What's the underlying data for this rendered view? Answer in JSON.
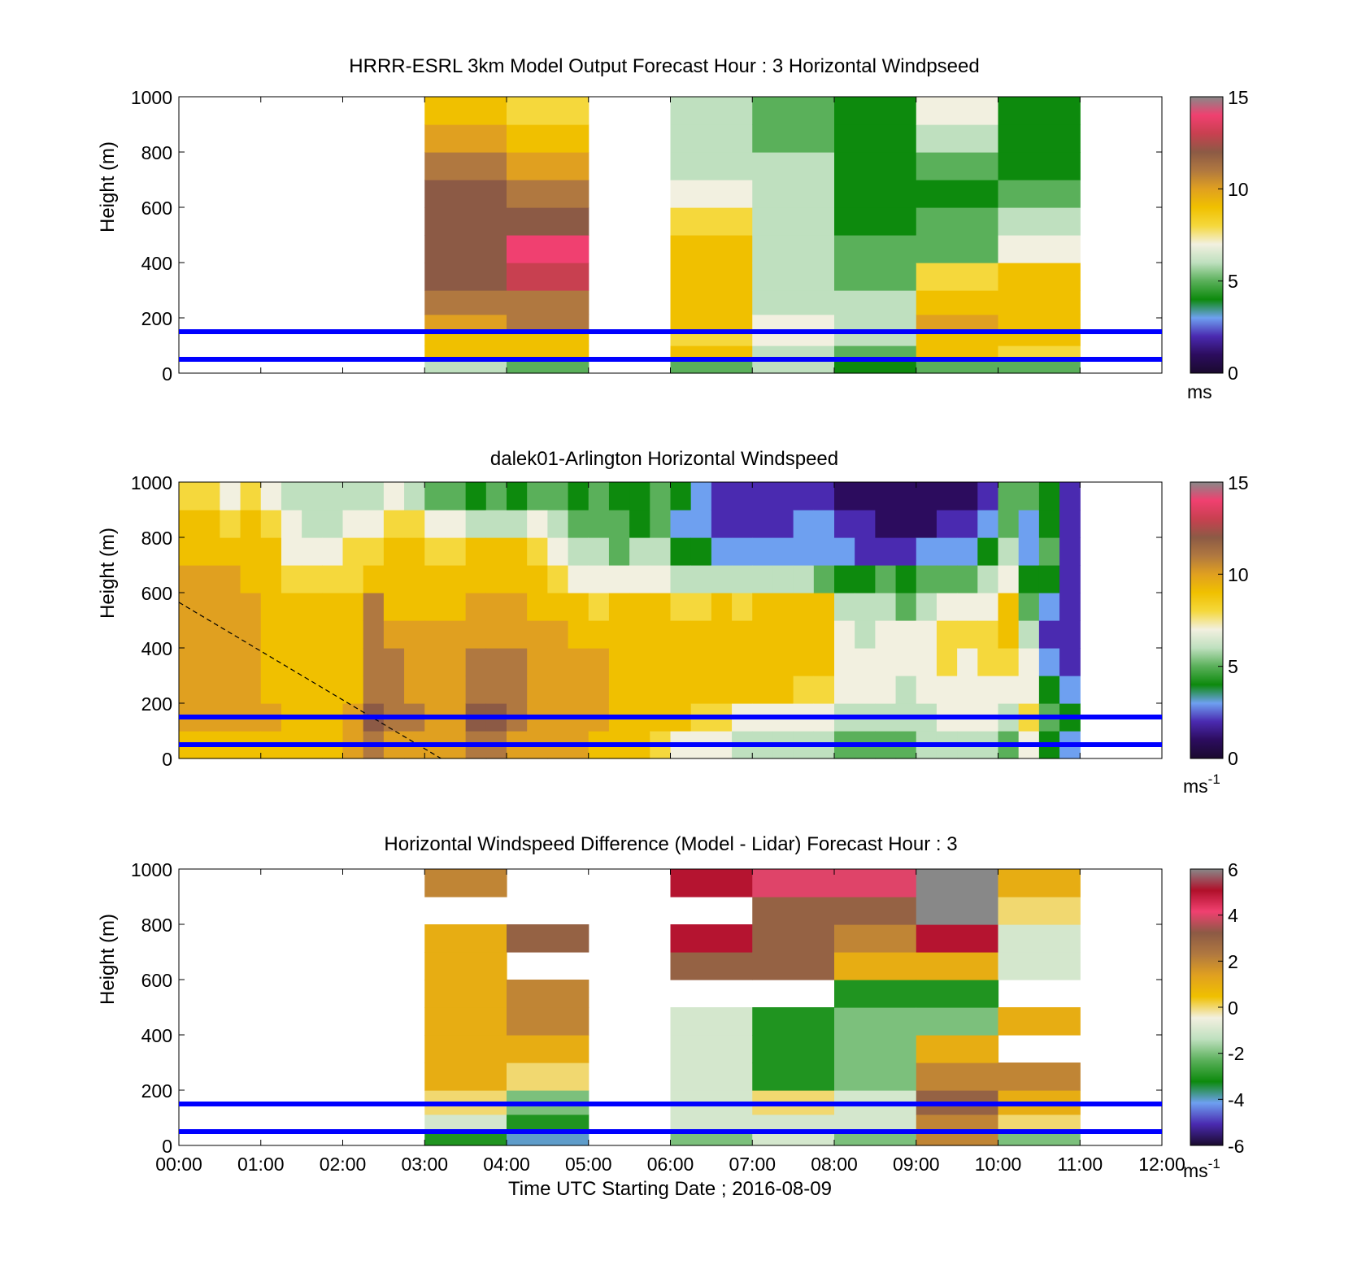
{
  "figure": {
    "xlabel": "Time UTC  Starting Date ; 2016-08-09"
  },
  "colors": {
    "lidar_band_lines": "#0000ff",
    "windspeed_scale": [
      "#1a0a2e",
      "#2c0c5e",
      "#4a2ab0",
      "#6ea0f0",
      "#0d8a0d",
      "#5ab05a",
      "#bfe0bf",
      "#f2f0e0",
      "#f5d83c",
      "#f0c000",
      "#e0a020",
      "#b07840",
      "#8c5a45",
      "#c84050",
      "#f04070",
      "#888888"
    ],
    "difference_scale": [
      "#1a0a2e",
      "#4a2ab0",
      "#6ea0f0",
      "#0d8a0d",
      "#5ab05a",
      "#bfe0bf",
      "#f2f0e0",
      "#f0c000",
      "#e0a020",
      "#b07840",
      "#8c5a45",
      "#f04070",
      "#b0102a",
      "#888888"
    ]
  },
  "chart_data": [
    {
      "type": "heatmap",
      "title": "HRRR-ESRL 3km Model Output   Forecast Hour : 3 Horizontal Windpseed",
      "xlabel": "",
      "ylabel": "Height (m)",
      "xlim": [
        0,
        12
      ],
      "ylim": [
        0,
        1000
      ],
      "x_ticks": [
        "00:00",
        "01:00",
        "02:00",
        "03:00",
        "04:00",
        "05:00",
        "06:00",
        "07:00",
        "08:00",
        "09:00",
        "10:00",
        "11:00",
        "12:00"
      ],
      "x_tick_labels_shown": false,
      "y_ticks": [
        "0",
        "200",
        "400",
        "600",
        "800",
        "1000"
      ],
      "grid": false,
      "colorbar": {
        "min": 0,
        "max": 15,
        "ticks": [
          "0",
          "5",
          "10",
          "15"
        ],
        "unit": "ms",
        "unit_sup": "",
        "scale": "windspeed"
      },
      "reference_lines_m": [
        50,
        150
      ],
      "heights_m": [
        25,
        75,
        125,
        175,
        250,
        350,
        450,
        550,
        650,
        750,
        850,
        950
      ],
      "columns": [
        {
          "x": 3.5,
          "values": [
            6,
            9,
            9,
            10,
            11,
            12,
            12,
            12,
            12,
            11,
            10,
            9
          ]
        },
        {
          "x": 4.5,
          "values": [
            5,
            9,
            9,
            11,
            11,
            13,
            14,
            12,
            11,
            10,
            9,
            8
          ]
        },
        {
          "x": 6.5,
          "values": [
            5,
            9,
            8,
            9,
            9,
            9,
            9,
            8,
            7,
            6,
            6,
            6
          ]
        },
        {
          "x": 7.5,
          "values": [
            6,
            6,
            7,
            7,
            6,
            6,
            6,
            6,
            6,
            6,
            5,
            5
          ]
        },
        {
          "x": 8.5,
          "values": [
            4,
            5,
            6,
            6,
            6,
            5,
            5,
            4,
            4,
            4,
            4,
            4
          ]
        },
        {
          "x": 9.5,
          "values": [
            5,
            9,
            9,
            10,
            9,
            8,
            5,
            5,
            4,
            5,
            6,
            7
          ]
        },
        {
          "x": 10.5,
          "values": [
            5,
            8,
            9,
            9,
            9,
            9,
            7,
            6,
            5,
            4,
            4,
            4
          ]
        }
      ]
    },
    {
      "type": "heatmap",
      "title": "dalek01-Arlington  Horizontal Windspeed",
      "xlabel": "",
      "ylabel": "Height (m)",
      "xlim": [
        0,
        12
      ],
      "ylim": [
        0,
        1000
      ],
      "x_ticks": [
        "00:00",
        "01:00",
        "02:00",
        "03:00",
        "04:00",
        "05:00",
        "06:00",
        "07:00",
        "08:00",
        "09:00",
        "10:00",
        "11:00",
        "12:00"
      ],
      "x_tick_labels_shown": false,
      "y_ticks": [
        "0",
        "200",
        "400",
        "600",
        "800",
        "1000"
      ],
      "grid": false,
      "colorbar": {
        "min": 0,
        "max": 15,
        "ticks": [
          "0",
          "5",
          "10",
          "15"
        ],
        "unit": "ms",
        "unit_sup": "-1",
        "scale": "windspeed"
      },
      "reference_lines_m": [
        50,
        150
      ],
      "dashed_line": {
        "x": [
          0,
          3.2
        ],
        "y": [
          565,
          0
        ]
      },
      "heights_m": [
        50,
        150,
        250,
        350,
        450,
        550,
        650,
        750,
        850,
        950
      ],
      "columns": [
        {
          "x": 0.125,
          "values": [
            9,
            10,
            10,
            10,
            10,
            10,
            10,
            9,
            9,
            8
          ]
        },
        {
          "x": 0.375,
          "values": [
            9,
            10,
            10,
            10,
            10,
            10,
            10,
            9,
            9,
            8
          ]
        },
        {
          "x": 0.625,
          "values": [
            9,
            10,
            10,
            10,
            10,
            10,
            10,
            9,
            8,
            7
          ]
        },
        {
          "x": 0.875,
          "values": [
            9,
            10,
            10,
            10,
            10,
            10,
            9,
            9,
            9,
            8
          ]
        },
        {
          "x": 1.125,
          "values": [
            9,
            10,
            9,
            9,
            9,
            9,
            9,
            9,
            8,
            7
          ]
        },
        {
          "x": 1.375,
          "values": [
            9,
            9,
            9,
            9,
            9,
            9,
            8,
            7,
            7,
            6
          ]
        },
        {
          "x": 1.625,
          "values": [
            9,
            9,
            9,
            9,
            9,
            9,
            8,
            7,
            6,
            6
          ]
        },
        {
          "x": 1.875,
          "values": [
            9,
            9,
            9,
            9,
            9,
            9,
            8,
            7,
            6,
            6
          ]
        },
        {
          "x": 2.125,
          "values": [
            10,
            10,
            9,
            9,
            9,
            9,
            8,
            8,
            7,
            6
          ]
        },
        {
          "x": 2.375,
          "values": [
            11,
            12,
            11,
            11,
            11,
            11,
            9,
            8,
            7,
            6
          ]
        },
        {
          "x": 2.625,
          "values": [
            10,
            11,
            11,
            11,
            10,
            9,
            9,
            9,
            8,
            7
          ]
        },
        {
          "x": 2.875,
          "values": [
            10,
            11,
            10,
            10,
            10,
            9,
            9,
            9,
            8,
            6
          ]
        },
        {
          "x": 3.125,
          "values": [
            10,
            10,
            10,
            10,
            10,
            9,
            9,
            8,
            7,
            5
          ]
        },
        {
          "x": 3.375,
          "values": [
            10,
            10,
            10,
            10,
            10,
            9,
            9,
            8,
            7,
            5
          ]
        },
        {
          "x": 3.625,
          "values": [
            11,
            12,
            11,
            11,
            10,
            10,
            9,
            9,
            6,
            4
          ]
        },
        {
          "x": 3.875,
          "values": [
            11,
            12,
            11,
            11,
            10,
            10,
            9,
            9,
            6,
            5
          ]
        },
        {
          "x": 4.125,
          "values": [
            10,
            11,
            11,
            11,
            10,
            10,
            9,
            9,
            6,
            4
          ]
        },
        {
          "x": 4.375,
          "values": [
            10,
            10,
            10,
            10,
            10,
            9,
            9,
            8,
            7,
            5
          ]
        },
        {
          "x": 4.625,
          "values": [
            10,
            10,
            10,
            10,
            10,
            9,
            8,
            7,
            6,
            5
          ]
        },
        {
          "x": 4.875,
          "values": [
            10,
            10,
            10,
            10,
            9,
            9,
            7,
            6,
            5,
            4
          ]
        },
        {
          "x": 5.125,
          "values": [
            9,
            10,
            10,
            10,
            9,
            8,
            7,
            6,
            5,
            5
          ]
        },
        {
          "x": 5.375,
          "values": [
            9,
            9,
            9,
            9,
            9,
            9,
            7,
            5,
            5,
            4
          ]
        },
        {
          "x": 5.625,
          "values": [
            9,
            9,
            9,
            9,
            9,
            9,
            7,
            6,
            4,
            4
          ]
        },
        {
          "x": 5.875,
          "values": [
            8,
            9,
            9,
            9,
            9,
            9,
            7,
            6,
            5,
            5
          ]
        },
        {
          "x": 6.125,
          "values": [
            7,
            9,
            9,
            9,
            9,
            8,
            6,
            4,
            3,
            4
          ]
        },
        {
          "x": 6.375,
          "values": [
            7,
            8,
            9,
            9,
            9,
            8,
            6,
            4,
            3,
            3
          ]
        },
        {
          "x": 6.625,
          "values": [
            7,
            8,
            9,
            9,
            9,
            9,
            6,
            3,
            2,
            2
          ]
        },
        {
          "x": 6.875,
          "values": [
            6,
            7,
            9,
            9,
            9,
            8,
            6,
            3,
            2,
            2
          ]
        },
        {
          "x": 7.125,
          "values": [
            6,
            7,
            9,
            9,
            9,
            9,
            6,
            3,
            2,
            2
          ]
        },
        {
          "x": 7.375,
          "values": [
            6,
            7,
            9,
            9,
            9,
            9,
            6,
            3,
            2,
            2
          ]
        },
        {
          "x": 7.625,
          "values": [
            6,
            7,
            8,
            9,
            9,
            9,
            6,
            3,
            3,
            2
          ]
        },
        {
          "x": 7.875,
          "values": [
            6,
            7,
            8,
            9,
            9,
            9,
            5,
            3,
            3,
            2
          ]
        },
        {
          "x": 8.125,
          "values": [
            5,
            6,
            7,
            7,
            7,
            6,
            4,
            3,
            2,
            1
          ]
        },
        {
          "x": 8.375,
          "values": [
            5,
            6,
            7,
            7,
            6,
            6,
            4,
            2,
            2,
            1
          ]
        },
        {
          "x": 8.625,
          "values": [
            5,
            6,
            7,
            7,
            7,
            6,
            5,
            2,
            1,
            1
          ]
        },
        {
          "x": 8.875,
          "values": [
            5,
            6,
            6,
            7,
            7,
            5,
            4,
            2,
            1,
            1
          ]
        },
        {
          "x": 9.125,
          "values": [
            6,
            6,
            7,
            7,
            7,
            6,
            5,
            3,
            1,
            1
          ]
        },
        {
          "x": 9.375,
          "values": [
            6,
            7,
            7,
            8,
            8,
            7,
            5,
            3,
            2,
            1
          ]
        },
        {
          "x": 9.625,
          "values": [
            6,
            7,
            7,
            7,
            8,
            7,
            5,
            3,
            2,
            1
          ]
        },
        {
          "x": 9.875,
          "values": [
            6,
            7,
            7,
            8,
            8,
            7,
            6,
            4,
            3,
            2
          ]
        },
        {
          "x": 10.125,
          "values": [
            5,
            6,
            7,
            8,
            9,
            9,
            7,
            6,
            5,
            5
          ]
        },
        {
          "x": 10.375,
          "values": [
            7,
            8,
            7,
            7,
            6,
            5,
            4,
            3,
            3,
            5
          ]
        },
        {
          "x": 10.625,
          "values": [
            4,
            5,
            4,
            3,
            2,
            3,
            4,
            5,
            4,
            4
          ]
        },
        {
          "x": 10.875,
          "values": [
            3,
            4,
            3,
            2,
            2,
            2,
            2,
            2,
            2,
            2
          ]
        }
      ]
    },
    {
      "type": "heatmap",
      "title": "Horizontal Windspeed Difference (Model - Lidar) Forecast Hour : 3",
      "xlabel": "Time UTC  Starting Date ; 2016-08-09",
      "ylabel": "Height (m)",
      "xlim": [
        0,
        12
      ],
      "ylim": [
        0,
        1000
      ],
      "x_ticks": [
        "00:00",
        "01:00",
        "02:00",
        "03:00",
        "04:00",
        "05:00",
        "06:00",
        "07:00",
        "08:00",
        "09:00",
        "10:00",
        "11:00",
        "12:00"
      ],
      "x_tick_labels_shown": true,
      "y_ticks": [
        "0",
        "200",
        "400",
        "600",
        "800",
        "1000"
      ],
      "grid": false,
      "colorbar": {
        "min": -6,
        "max": 6,
        "ticks": [
          "-6",
          "-4",
          "-2",
          "0",
          "2",
          "4",
          "6"
        ],
        "unit": "ms",
        "unit_sup": "-1",
        "scale": "difference"
      },
      "reference_lines_m": [
        50,
        150
      ],
      "heights_m": [
        25,
        75,
        150,
        250,
        350,
        450,
        550,
        650,
        750,
        850,
        950
      ],
      "columns": [
        {
          "x": 3.5,
          "values": [
            -3,
            -1,
            0,
            1,
            1,
            1,
            1,
            1,
            1,
            null,
            2
          ]
        },
        {
          "x": 4.5,
          "values": [
            -4,
            -3,
            -2,
            0,
            1,
            2,
            2,
            null,
            3,
            null,
            null
          ]
        },
        {
          "x": 6.5,
          "values": [
            -2,
            -1,
            -1,
            -1,
            -1,
            -1,
            null,
            3,
            5,
            null,
            5
          ]
        },
        {
          "x": 7.5,
          "values": [
            -1,
            -1,
            0,
            -3,
            -3,
            -3,
            null,
            3,
            3,
            3,
            4
          ]
        },
        {
          "x": 8.5,
          "values": [
            -2,
            -1,
            -1,
            -2,
            -2,
            -2,
            -3,
            1,
            2,
            3,
            4
          ]
        },
        {
          "x": 9.5,
          "values": [
            2,
            2,
            3,
            2,
            1,
            -2,
            -3,
            1,
            5,
            6,
            6
          ]
        },
        {
          "x": 10.5,
          "values": [
            -2,
            0,
            1,
            2,
            null,
            1,
            null,
            -1,
            -1,
            0,
            1
          ]
        }
      ]
    }
  ]
}
